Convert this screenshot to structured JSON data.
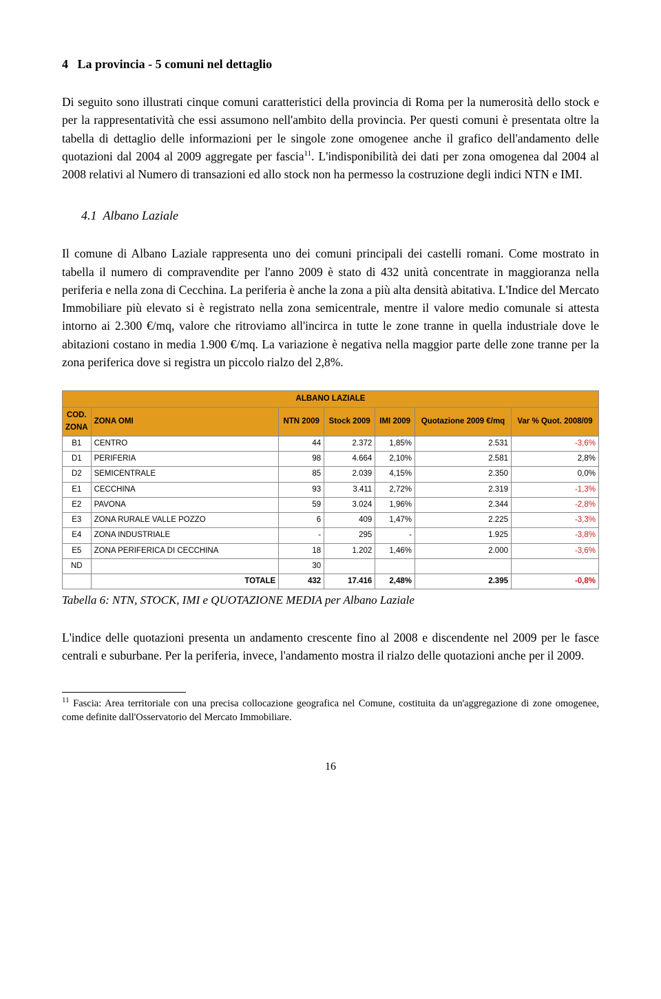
{
  "section": {
    "number": "4",
    "title": "La provincia - 5 comuni nel dettaglio"
  },
  "para1": "Di seguito sono illustrati cinque comuni caratteristici della provincia di Roma per la numerosità dello stock e per la rappresentatività che essi assumono nell'ambito della provincia. Per questi comuni è presentata oltre la tabella di dettaglio delle informazioni per le singole zone omogenee anche il grafico dell'andamento delle quotazioni dal 2004 al 2009 aggregate per fascia",
  "para1_sup": "11",
  "para1_tail": ". L'indisponibilità dei dati per zona omogenea dal 2004 al 2008 relativi al Numero di transazioni ed allo stock non ha permesso la costruzione degli indici NTN e IMI.",
  "subsection": {
    "number": "4.1",
    "title": "Albano Laziale"
  },
  "para2": "Il comune di Albano Laziale rappresenta uno dei comuni principali dei castelli romani. Come mostrato in tabella il numero di compravendite per l'anno 2009 è stato di 432 unità concentrate in maggioranza nella periferia e nella zona di Cecchina. La periferia è anche la zona a più alta densità abitativa. L'Indice del Mercato Immobiliare più elevato si è registrato nella zona semicentrale, mentre il valore medio comunale si attesta intorno ai 2.300 €/mq, valore che ritroviamo all'incirca in tutte le zone tranne in quella industriale dove le abitazioni costano in media 1.900 €/mq. La variazione è negativa nella maggior parte delle zone tranne per la zona periferica dove si registra un piccolo rialzo del 2,8%.",
  "table": {
    "title": "ALBANO LAZIALE",
    "columns": [
      "COD. ZONA",
      "ZONA OMI",
      "NTN 2009",
      "Stock 2009",
      "IMI 2009",
      "Quotazione 2009 €/mq",
      "Var % Quot. 2008/09"
    ],
    "rows": [
      {
        "code": "B1",
        "zone": "CENTRO",
        "ntn": "44",
        "stock": "2.372",
        "imi": "1,85%",
        "quot": "2.531",
        "var": "-3,6%",
        "neg": true
      },
      {
        "code": "D1",
        "zone": "PERIFERIA",
        "ntn": "98",
        "stock": "4.664",
        "imi": "2,10%",
        "quot": "2.581",
        "var": "2,8%",
        "neg": false
      },
      {
        "code": "D2",
        "zone": "SEMICENTRALE",
        "ntn": "85",
        "stock": "2.039",
        "imi": "4,15%",
        "quot": "2.350",
        "var": "0,0%",
        "neg": false
      },
      {
        "code": "E1",
        "zone": "CECCHINA",
        "ntn": "93",
        "stock": "3.411",
        "imi": "2,72%",
        "quot": "2.319",
        "var": "-1,3%",
        "neg": true
      },
      {
        "code": "E2",
        "zone": "PAVONA",
        "ntn": "59",
        "stock": "3.024",
        "imi": "1,96%",
        "quot": "2.344",
        "var": "-2,8%",
        "neg": true
      },
      {
        "code": "E3",
        "zone": "ZONA RURALE VALLE POZZO",
        "ntn": "6",
        "stock": "409",
        "imi": "1,47%",
        "quot": "2.225",
        "var": "-3,3%",
        "neg": true
      },
      {
        "code": "E4",
        "zone": "ZONA INDUSTRIALE",
        "ntn": "-",
        "stock": "295",
        "imi": "-",
        "quot": "1.925",
        "var": "-3,8%",
        "neg": true
      },
      {
        "code": "E5",
        "zone": "ZONA PERIFERICA DI CECCHINA",
        "ntn": "18",
        "stock": "1.202",
        "imi": "1,46%",
        "quot": "2.000",
        "var": "-3,6%",
        "neg": true
      },
      {
        "code": "ND",
        "zone": "",
        "ntn": "30",
        "stock": "",
        "imi": "",
        "quot": "",
        "var": "",
        "neg": false
      }
    ],
    "total": {
      "label": "TOTALE",
      "ntn": "432",
      "stock": "17.416",
      "imi": "2,48%",
      "quot": "2.395",
      "var": "-0,8%",
      "neg": true
    }
  },
  "table_caption": "Tabella 6: NTN, STOCK, IMI e QUOTAZIONE MEDIA per Albano Laziale",
  "para3": "L'indice delle quotazioni presenta un andamento crescente fino al 2008 e discendente nel 2009 per le fasce centrali e suburbane. Per la periferia, invece, l'andamento mostra il rialzo delle quotazioni anche per il 2009.",
  "footnote": {
    "num": "11",
    "text": " Fascia: Area territoriale con una precisa collocazione geografica nel Comune, costituita da un'aggregazione di zone omogenee, come definite dall'Osservatorio del Mercato Immobiliare."
  },
  "page_number": "16"
}
